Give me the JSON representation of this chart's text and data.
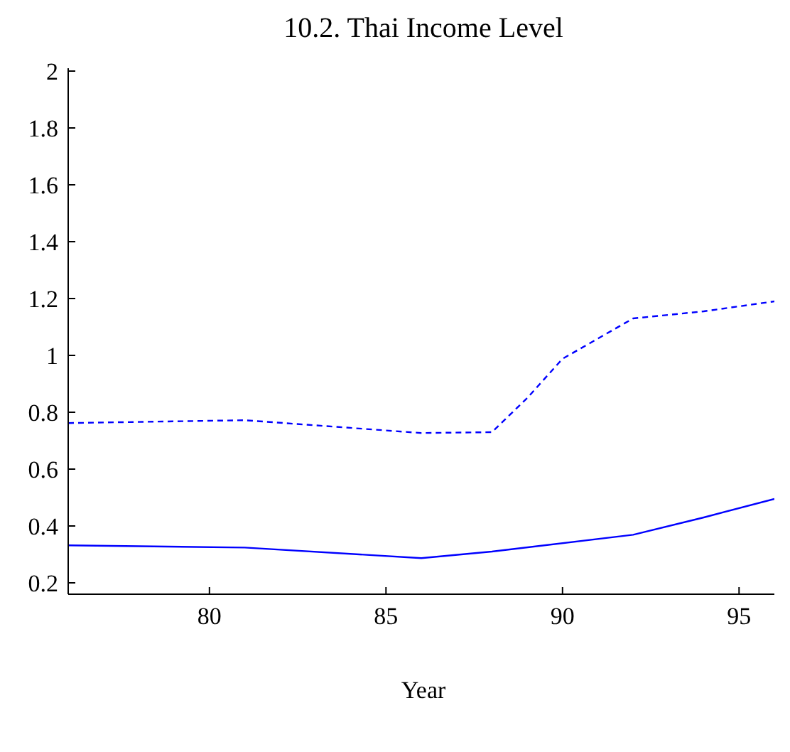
{
  "chart_data": {
    "type": "line",
    "title": "10.2. Thai Income Level",
    "xlabel": "Year",
    "xlim": [
      76,
      96
    ],
    "xticks": [
      80,
      85,
      90,
      95
    ],
    "ylim": [
      0.16,
      2.01
    ],
    "yticks": [
      0.2,
      0.4,
      0.6,
      0.8,
      1,
      1.2,
      1.4,
      1.6,
      1.8,
      2
    ],
    "grid": false,
    "legend": false,
    "marker": "none",
    "series": [
      {
        "color": "#0000ff",
        "line_style": "solid",
        "x": [
          76,
          81,
          86,
          88,
          92,
          94,
          96
        ],
        "values": [
          0.332,
          0.324,
          0.287,
          0.31,
          0.369,
          0.43,
          0.495
        ]
      },
      {
        "color": "#0000ff",
        "line_style": "dashed",
        "x": [
          76,
          81,
          86,
          88,
          89,
          90,
          92,
          94,
          96
        ],
        "values": [
          0.762,
          0.772,
          0.727,
          0.73,
          0.85,
          0.988,
          1.13,
          1.155,
          1.19
        ]
      }
    ]
  }
}
